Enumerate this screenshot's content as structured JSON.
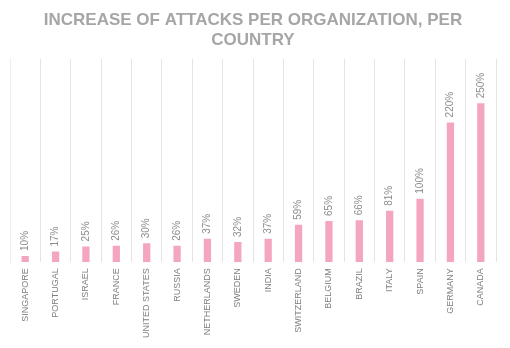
{
  "chart_data": {
    "type": "bar",
    "title": "INCREASE OF ATTACKS PER ORGANIZATION, PER COUNTRY",
    "categories": [
      "SINGAPORE",
      "PORTUGAL",
      "ISRAEL",
      "FRANCE",
      "UNITED STATES",
      "RUSSIA",
      "NETHERLANDS",
      "SWEDEN",
      "INDIA",
      "SWITZERLAND",
      "BELGIUM",
      "BRAZIL",
      "ITALY",
      "SPAIN",
      "GERMANY",
      "CANADA"
    ],
    "values": [
      10,
      17,
      25,
      26,
      30,
      26,
      37,
      32,
      37,
      59,
      65,
      66,
      81,
      100,
      220,
      250
    ],
    "value_labels": [
      "10%",
      "17%",
      "25%",
      "26%",
      "30%",
      "26%",
      "37%",
      "32%",
      "37%",
      "59%",
      "65%",
      "66%",
      "81%",
      "100%",
      "220%",
      "250%"
    ],
    "color": "#f4a6c1",
    "ylim": [
      0,
      320
    ],
    "grid": true,
    "data_labels": true,
    "tick_labels": "x"
  }
}
